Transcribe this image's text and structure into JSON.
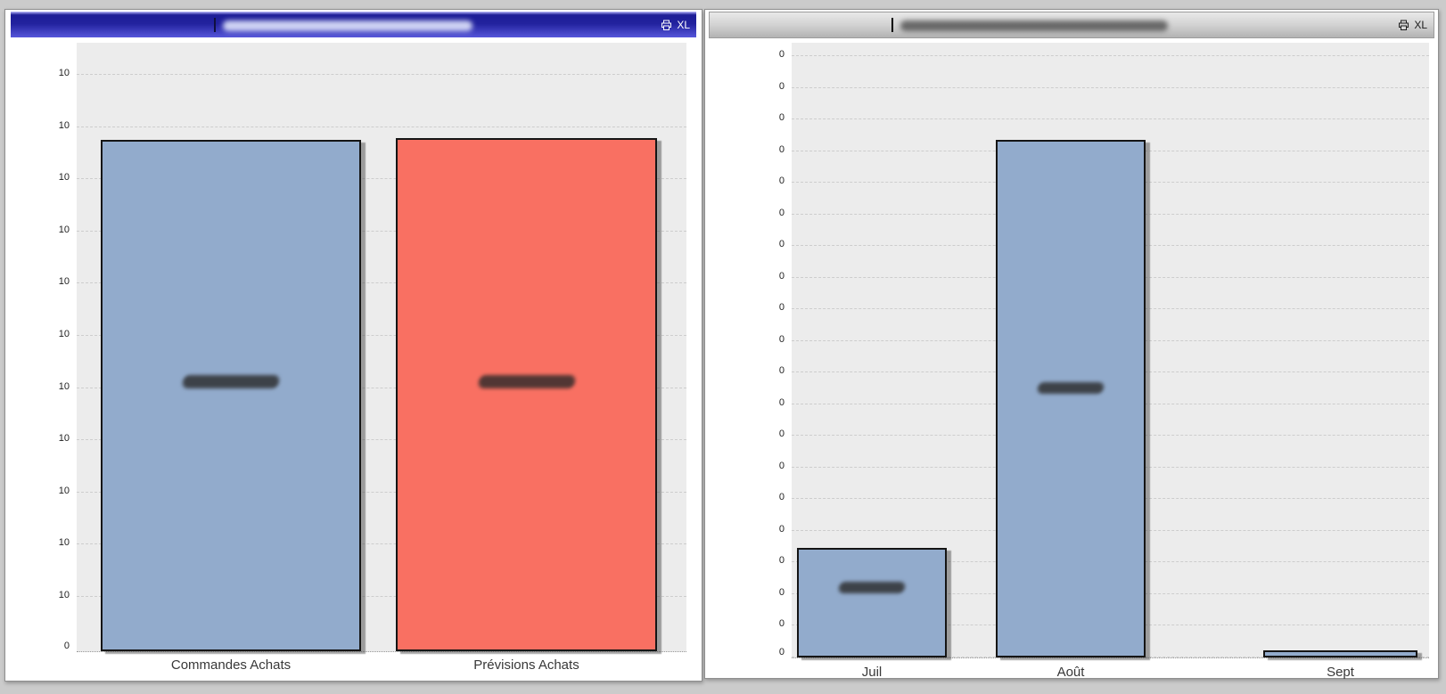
{
  "desktop": {
    "background_color": "#cbcbcb"
  },
  "windows": {
    "left": {
      "state": "active",
      "title_redacted": true,
      "excel_label": "XL",
      "caption_color": "#2222a0"
    },
    "right": {
      "state": "inactive",
      "title_redacted": true,
      "excel_label": "XL",
      "caption_color": "#c9c9c9"
    }
  },
  "chart_data": [
    {
      "type": "bar",
      "title": "",
      "title_redacted": true,
      "categories": [
        "Commandes Achats",
        "Prévisions Achats"
      ],
      "values": [
        0.84,
        0.843
      ],
      "ylim": [
        0,
        1
      ],
      "units_note": "y-axis numbers redacted; values are fractions of axis height",
      "value_labels_redacted": [
        true,
        true
      ],
      "bar_colors": [
        "#92abcc",
        "#f97062"
      ],
      "y_tick_labels_top_to_bottom": [
        "10",
        "10",
        "10",
        "10",
        "10",
        "10",
        "10",
        "10",
        "10",
        "10",
        "10",
        "0"
      ],
      "grid": "dashed-horizontal",
      "legend": "none",
      "plot_background": "#ececec"
    },
    {
      "type": "bar",
      "title": "",
      "title_redacted": true,
      "categories": [
        "Juil",
        "Août",
        "Sept"
      ],
      "values": [
        0.178,
        0.842,
        0.012
      ],
      "ylim": [
        0,
        1
      ],
      "units_note": "y-axis numbers redacted; values are fractions of axis height",
      "value_labels_redacted": [
        true,
        true,
        false
      ],
      "bar_colors": [
        "#92abcc",
        "#92abcc",
        "#92abcc"
      ],
      "y_tick_labels_top_to_bottom": [
        "0",
        "0",
        "0",
        "0",
        "0",
        "0",
        "0",
        "0",
        "0",
        "0",
        "0",
        "0",
        "0",
        "0",
        "0",
        "0",
        "0",
        "0",
        "0",
        "0"
      ],
      "grid": "dashed-horizontal",
      "legend": "none",
      "plot_background": "#ececec"
    }
  ]
}
